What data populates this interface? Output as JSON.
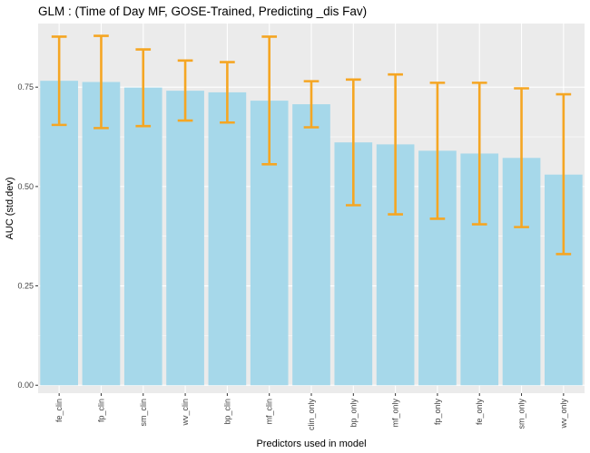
{
  "chart_data": {
    "type": "bar",
    "title": "GLM : (Time of Day MF, GOSE-Trained, Predicting _dis Fav)",
    "xlabel": "Predictors used in model",
    "ylabel": "AUC (std.dev)",
    "categories": [
      "fe_clin",
      "fp_clin",
      "sm_clin",
      "wv_clin",
      "bp_clin",
      "mf_clin",
      "clin_only",
      "bp_only",
      "mf_only",
      "fp_only",
      "fe_only",
      "sm_only",
      "wv_only"
    ],
    "values": [
      0.766,
      0.763,
      0.749,
      0.741,
      0.737,
      0.716,
      0.707,
      0.611,
      0.606,
      0.59,
      0.583,
      0.572,
      0.53
    ],
    "error_low": [
      0.655,
      0.647,
      0.652,
      0.666,
      0.661,
      0.556,
      0.649,
      0.453,
      0.43,
      0.419,
      0.405,
      0.398,
      0.33
    ],
    "error_high": [
      0.877,
      0.879,
      0.845,
      0.817,
      0.813,
      0.877,
      0.765,
      0.769,
      0.782,
      0.761,
      0.761,
      0.747,
      0.732
    ],
    "y_ticks": [
      "0.00",
      "0.25",
      "0.50",
      "0.75"
    ],
    "ylim": [
      -0.02,
      0.91
    ],
    "grid": true,
    "colors": {
      "bar": "#a6d8ea",
      "error": "#f5a623",
      "panel": "#ebebeb",
      "grid": "#ffffff"
    }
  }
}
